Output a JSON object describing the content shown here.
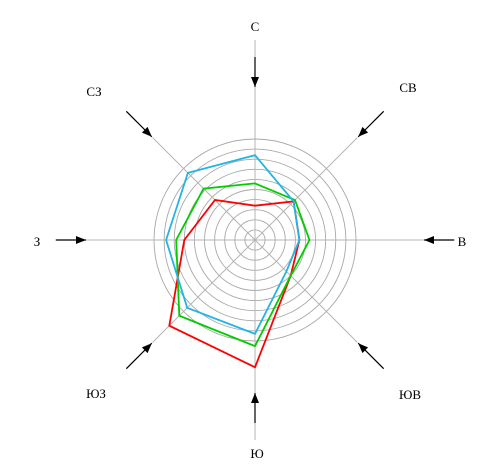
{
  "chart_data": {
    "type": "radar",
    "title": "",
    "directions": [
      "С",
      "СВ",
      "В",
      "ЮВ",
      "Ю",
      "ЮЗ",
      "З",
      "СЗ"
    ],
    "r_max": 10,
    "ring_count": 10,
    "grid": true,
    "legend": "none",
    "series": [
      {
        "color": "#ff0000",
        "values": [
          3.4,
          5.4,
          4.4,
          5.0,
          12.6,
          12.0,
          7.0,
          5.6
        ]
      },
      {
        "color": "#00cc00",
        "values": [
          5.6,
          5.6,
          5.4,
          5.0,
          10.5,
          10.6,
          7.8,
          7.2
        ]
      },
      {
        "color": "#22b4e6",
        "values": [
          8.4,
          5.4,
          4.4,
          4.4,
          9.3,
          9.5,
          8.8,
          9.4
        ]
      }
    ]
  }
}
